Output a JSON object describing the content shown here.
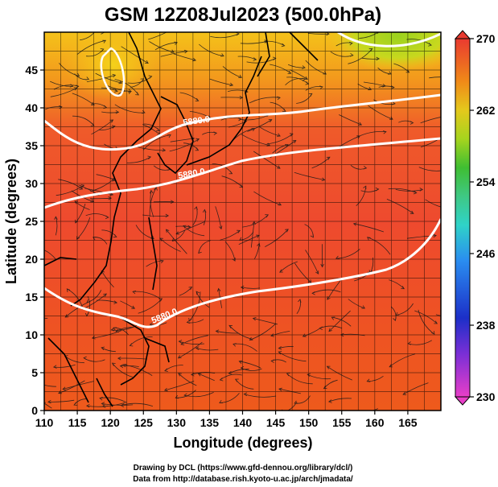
{
  "title": "GSM 12Z08Jul2023 (500.0hPa)",
  "x_axis": {
    "label": "Longitude (degrees)",
    "min": 110,
    "max": 170,
    "ticks": [
      "110",
      "115",
      "120",
      "125",
      "130",
      "135",
      "140",
      "145",
      "150",
      "155",
      "160",
      "165"
    ]
  },
  "y_axis": {
    "label": "Latitude  (degrees)",
    "min": 0,
    "max": 50,
    "ticks": [
      "0",
      "5",
      "10",
      "15",
      "20",
      "25",
      "30",
      "35",
      "40",
      "45"
    ]
  },
  "colorbar": {
    "min": 230,
    "max": 270,
    "labels": [
      "230",
      "238",
      "246",
      "254",
      "262",
      "270"
    ],
    "colors": [
      "#e83ec8",
      "#6f2fd9",
      "#1c2fc8",
      "#2a8df0",
      "#2fd3c8",
      "#46c98a",
      "#3fbe32",
      "#a6d41e",
      "#e4c81c",
      "#f08a18",
      "#ee5a22",
      "#e93a30"
    ]
  },
  "contours": {
    "level_label": "5880.0",
    "labels": [
      "5880.0",
      "5880.0",
      "5880.0"
    ]
  },
  "credits": {
    "line1": "Drawing by DCL (https://www.gfd-dennou.org/library/dcl/)",
    "line2": "Data from http://database.rish.kyoto-u.ac.jp/arch/jmadata/"
  }
}
